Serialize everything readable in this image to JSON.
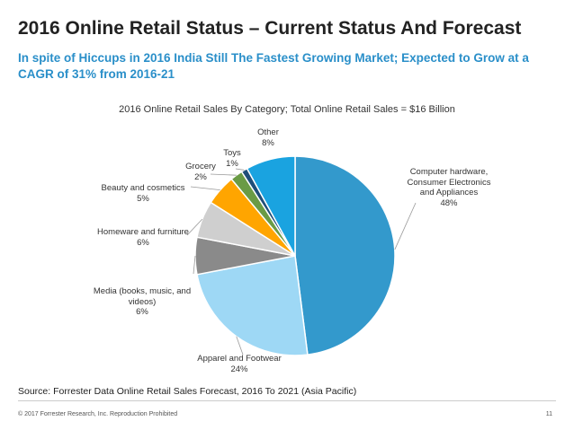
{
  "header": {
    "title": "2016 Online Retail Status – Current Status And Forecast",
    "subtitle": "In spite of Hiccups in 2016 India Still The Fastest Growing Market; Expected to Grow at a CAGR of 31% from 2016-21"
  },
  "colors": {
    "subtitle": "#2a8fc9",
    "computer": "#3399cc",
    "apparel": "#9ed8f5",
    "media": "#8a8a8a",
    "homeware": "#cfcfcf",
    "beauty": "#ffa500",
    "grocery": "#6a9b45",
    "toys": "#1f4e79",
    "other": "#1aa3e0"
  },
  "chart_data": {
    "type": "pie",
    "title": "2016 Online Retail Sales By Category; Total Online Retail Sales = $16 Billion",
    "slices": [
      {
        "label": "Computer hardware, Consumer Electronics and Appliances",
        "value": 48,
        "display": "48%",
        "color_key": "computer"
      },
      {
        "label": "Apparel and Footwear",
        "value": 24,
        "display": "24%",
        "color_key": "apparel"
      },
      {
        "label": "Media (books, music, and videos)",
        "value": 6,
        "display": "6%",
        "color_key": "media"
      },
      {
        "label": "Homeware and furniture",
        "value": 6,
        "display": "6%",
        "color_key": "homeware"
      },
      {
        "label": "Beauty and cosmetics",
        "value": 5,
        "display": "5%",
        "color_key": "beauty"
      },
      {
        "label": "Grocery",
        "value": 2,
        "display": "2%",
        "color_key": "grocery"
      },
      {
        "label": "Toys",
        "value": 1,
        "display": "1%",
        "color_key": "toys"
      },
      {
        "label": "Other",
        "value": 8,
        "display": "8%",
        "color_key": "other"
      }
    ]
  },
  "source": "Source: Forrester Data Online Retail Sales Forecast, 2016 To 2021 (Asia Pacific)",
  "footer": {
    "copyright": "© 2017 Forrester Research, Inc. Reproduction Prohibited",
    "page_number": "11"
  }
}
